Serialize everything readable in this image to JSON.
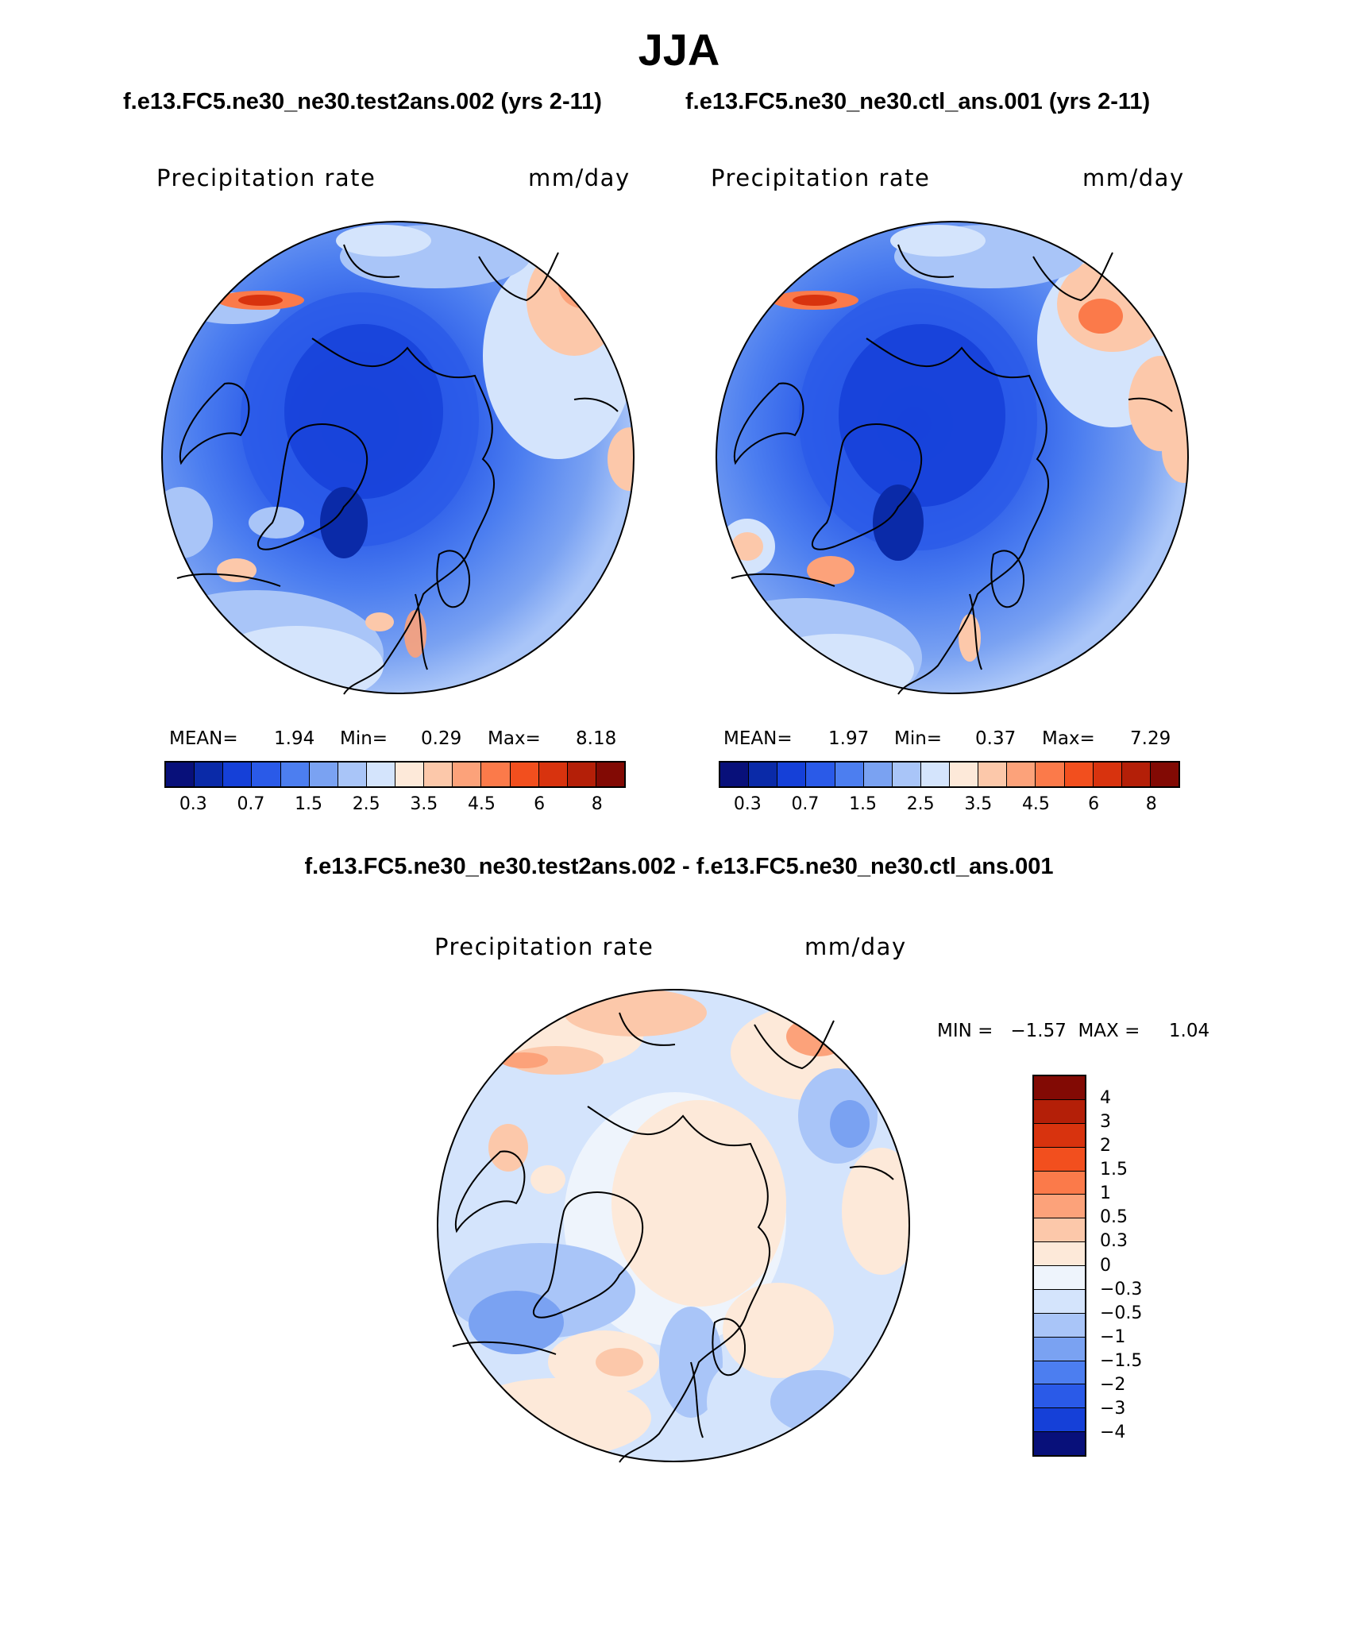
{
  "title": "JJA",
  "panels": {
    "test": {
      "case": "f.e13.FC5.ne30_ne30.test2ans.002 (yrs 2-11)",
      "variable": "Precipitation rate",
      "units": "mm/day",
      "mean_label": "MEAN=",
      "mean": "1.94",
      "min_label": "Min=",
      "min": "0.29",
      "max_label": "Max=",
      "max": "8.18"
    },
    "control": {
      "case": "f.e13.FC5.ne30_ne30.ctl_ans.001 (yrs 2-11)",
      "variable": "Precipitation rate",
      "units": "mm/day",
      "mean_label": "MEAN=",
      "mean": "1.97",
      "min_label": "Min=",
      "min": "0.37",
      "max_label": "Max=",
      "max": "7.29"
    },
    "difference": {
      "title": "f.e13.FC5.ne30_ne30.test2ans.002 - f.e13.FC5.ne30_ne30.ctl_ans.001",
      "variable": "Precipitation rate",
      "units": "mm/day",
      "range_text": "MIN =   −1.57  MAX =     1.04"
    }
  },
  "colorbar_abs": {
    "ticks": [
      "0.3",
      "0.7",
      "1.5",
      "2.5",
      "3.5",
      "4.5",
      "6",
      "8"
    ],
    "colors": [
      "#08107a",
      "#0a2aa8",
      "#1540d8",
      "#2a5ae8",
      "#4c7ef0",
      "#7aa2f2",
      "#a9c5f8",
      "#d4e4fc",
      "#fde9d9",
      "#fcc8aa",
      "#fca27a",
      "#fb7a4a",
      "#f24f1e",
      "#d8330e",
      "#b41f08",
      "#820a04"
    ]
  },
  "colorbar_diff": {
    "labels": [
      "4",
      "3",
      "2",
      "1.5",
      "1",
      "0.5",
      "0.3",
      "0",
      "−0.3",
      "−0.5",
      "−1",
      "−1.5",
      "−2",
      "−3",
      "−4"
    ],
    "colors": [
      "#820a04",
      "#b41f08",
      "#d8330e",
      "#f24f1e",
      "#fb7a4a",
      "#fca27a",
      "#fcc8aa",
      "#fde9d9",
      "#eef4fc",
      "#d4e4fc",
      "#a9c5f8",
      "#7aa2f2",
      "#4c7ef0",
      "#2a5ae8",
      "#1540d8",
      "#08107a"
    ]
  }
}
